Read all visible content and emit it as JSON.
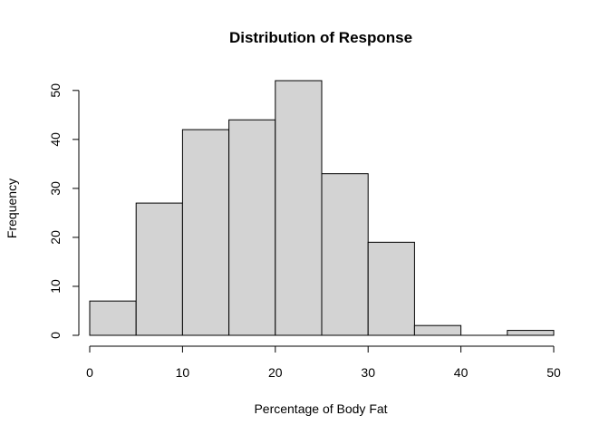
{
  "chart_data": {
    "type": "bar",
    "title": "Distribution of Response",
    "xlabel": "Percentage of Body Fat",
    "ylabel": "Frequency",
    "bins": [
      {
        "start": 0,
        "end": 5,
        "count": 7
      },
      {
        "start": 5,
        "end": 10,
        "count": 27
      },
      {
        "start": 10,
        "end": 15,
        "count": 42
      },
      {
        "start": 15,
        "end": 20,
        "count": 44
      },
      {
        "start": 20,
        "end": 25,
        "count": 52
      },
      {
        "start": 25,
        "end": 30,
        "count": 33
      },
      {
        "start": 30,
        "end": 35,
        "count": 19
      },
      {
        "start": 35,
        "end": 40,
        "count": 2
      },
      {
        "start": 40,
        "end": 45,
        "count": 0
      },
      {
        "start": 45,
        "end": 50,
        "count": 1
      }
    ],
    "xlim": [
      0,
      50
    ],
    "ylim": [
      0,
      52
    ],
    "xticks": [
      0,
      10,
      20,
      30,
      40,
      50
    ],
    "yticks": [
      0,
      10,
      20,
      30,
      40,
      50
    ],
    "grid": false,
    "bar_color": "#d3d3d3",
    "edge_color": "#000000"
  }
}
